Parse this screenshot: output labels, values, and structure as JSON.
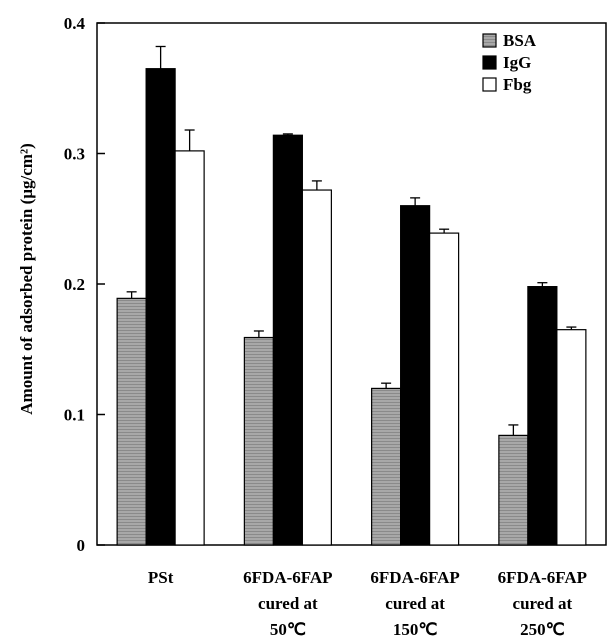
{
  "chart_data": {
    "type": "bar",
    "title": "",
    "xlabel": "",
    "ylabel": "Amount of adsorbed protein (µg/cm²)",
    "ylim": [
      0,
      0.4
    ],
    "yticks": [
      "0",
      "0.1",
      "0.2",
      "0.3",
      "0.4"
    ],
    "categories": [
      [
        "PSt"
      ],
      [
        "6FDA-6FAP",
        "cured at",
        "50℃"
      ],
      [
        "6FDA-6FAP",
        "cured at",
        "150℃"
      ],
      [
        "6FDA-6FAP",
        "cured at",
        "250℃"
      ]
    ],
    "series": [
      {
        "name": "BSA",
        "color": "#a0a0a0",
        "values": [
          0.189,
          0.159,
          0.12,
          0.084
        ],
        "errors": [
          0.005,
          0.005,
          0.004,
          0.008
        ]
      },
      {
        "name": "IgG",
        "color": "#000000",
        "values": [
          0.365,
          0.314,
          0.26,
          0.198
        ],
        "errors": [
          0.017,
          0.001,
          0.006,
          0.003
        ]
      },
      {
        "name": "Fbg",
        "color": "#ffffff",
        "values": [
          0.302,
          0.272,
          0.239,
          0.165
        ],
        "errors": [
          0.016,
          0.007,
          0.003,
          0.002
        ]
      }
    ],
    "legend_position": "top-right",
    "grid": false
  }
}
